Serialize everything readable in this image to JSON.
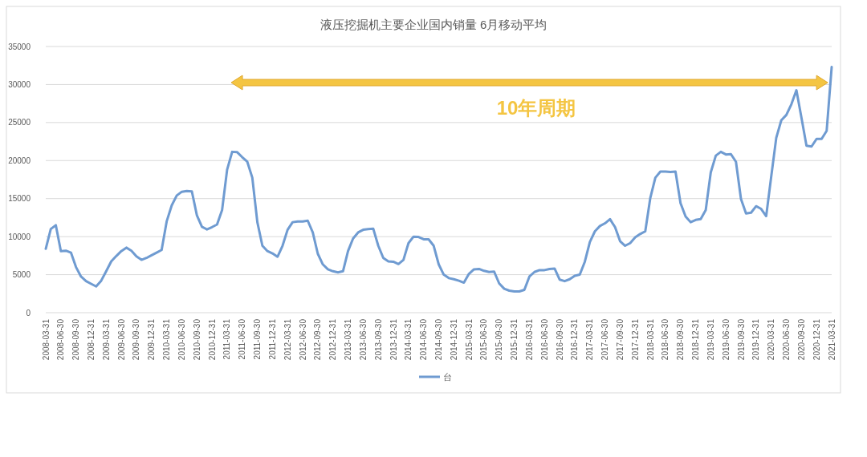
{
  "chart_data": {
    "type": "line",
    "title": "液压挖掘机主要企业国内销量 6月移动平均",
    "categories": [
      "2008-03-31",
      null,
      null,
      "2008-06-30",
      null,
      null,
      "2008-09-30",
      null,
      null,
      "2008-12-31",
      null,
      null,
      "2009-03-31",
      null,
      null,
      "2009-06-30",
      null,
      null,
      "2009-09-30",
      null,
      null,
      "2009-12-31",
      null,
      null,
      "2010-03-31",
      null,
      null,
      "2010-06-30",
      null,
      null,
      "2010-09-30",
      null,
      null,
      "2010-12-31",
      null,
      null,
      "2011-03-31",
      null,
      null,
      "2011-06-30",
      null,
      null,
      "2011-09-30",
      null,
      null,
      "2011-12-31",
      null,
      null,
      "2012-03-31",
      null,
      null,
      "2012-06-30",
      null,
      null,
      "2012-09-30",
      null,
      null,
      "2012-12-31",
      null,
      null,
      "2013-03-31",
      null,
      null,
      "2013-06-30",
      null,
      null,
      "2013-09-30",
      null,
      null,
      "2013-12-31",
      null,
      null,
      "2014-03-31",
      null,
      null,
      "2014-06-30",
      null,
      null,
      "2014-09-30",
      null,
      null,
      "2014-12-31",
      null,
      null,
      "2015-03-31",
      null,
      null,
      "2015-06-30",
      null,
      null,
      "2015-09-30",
      null,
      null,
      "2015-12-31",
      null,
      null,
      "2016-03-31",
      null,
      null,
      "2016-06-30",
      null,
      null,
      "2016-09-30",
      null,
      null,
      "2016-12-31",
      null,
      null,
      "2017-03-31",
      null,
      null,
      "2017-06-30",
      null,
      null,
      "2017-09-30",
      null,
      null,
      "2017-12-31",
      null,
      null,
      "2018-03-31",
      null,
      null,
      "2018-06-30",
      null,
      null,
      "2018-09-30",
      null,
      null,
      "2018-12-31",
      null,
      null,
      "2019-03-31",
      null,
      null,
      "2019-06-30",
      null,
      null,
      "2019-09-30",
      null,
      null,
      "2019-12-31",
      null,
      null,
      "2020-03-31",
      null,
      null,
      "2020-06-30",
      null,
      null,
      "2020-09-30",
      null,
      null,
      "2020-12-31",
      null,
      null,
      "2021-03-31"
    ],
    "series": [
      {
        "name": "台",
        "color": "#6f9bd1",
        "values": [
          8400,
          11000,
          11500,
          8100,
          8150,
          7900,
          6000,
          4750,
          4150,
          3800,
          3450,
          4200,
          5450,
          6750,
          7450,
          8100,
          8550,
          8150,
          7400,
          6950,
          7200,
          7550,
          7900,
          8250,
          12000,
          14100,
          15400,
          15900,
          16000,
          15950,
          12800,
          11300,
          10950,
          11250,
          11600,
          13500,
          18800,
          21150,
          21100,
          20450,
          19850,
          17750,
          11900,
          8800,
          8100,
          7800,
          7350,
          8800,
          10900,
          11900,
          12000,
          12000,
          12100,
          10550,
          7750,
          6350,
          5700,
          5450,
          5300,
          5450,
          8100,
          9750,
          10550,
          10900,
          11000,
          11050,
          8800,
          7200,
          6750,
          6700,
          6400,
          6950,
          9150,
          10000,
          9950,
          9650,
          9650,
          8800,
          6350,
          5000,
          4550,
          4400,
          4200,
          3950,
          5100,
          5700,
          5750,
          5500,
          5350,
          5400,
          3850,
          3150,
          2900,
          2800,
          2800,
          3000,
          4750,
          5350,
          5600,
          5600,
          5750,
          5800,
          4350,
          4150,
          4400,
          4850,
          5000,
          6700,
          9300,
          10700,
          11400,
          11750,
          12300,
          11250,
          9400,
          8800,
          9150,
          9900,
          10350,
          10700,
          15100,
          17750,
          18550,
          18550,
          18500,
          18550,
          14400,
          12650,
          11900,
          12200,
          12300,
          13500,
          18450,
          20650,
          21150,
          20800,
          20850,
          19850,
          14950,
          13050,
          13150,
          14000,
          13650,
          12700,
          17900,
          23000,
          25300,
          26000,
          27400,
          29250,
          25650,
          21950,
          21850,
          22850,
          22850,
          23900,
          32300
        ]
      }
    ],
    "ylim": [
      0,
      35000
    ],
    "yticks": [
      0,
      5000,
      10000,
      15000,
      20000,
      25000,
      30000,
      35000
    ],
    "grid": "y",
    "legend": "bottom",
    "marker": "none",
    "line_style": "solid",
    "annotations": [
      "10年周期"
    ]
  }
}
